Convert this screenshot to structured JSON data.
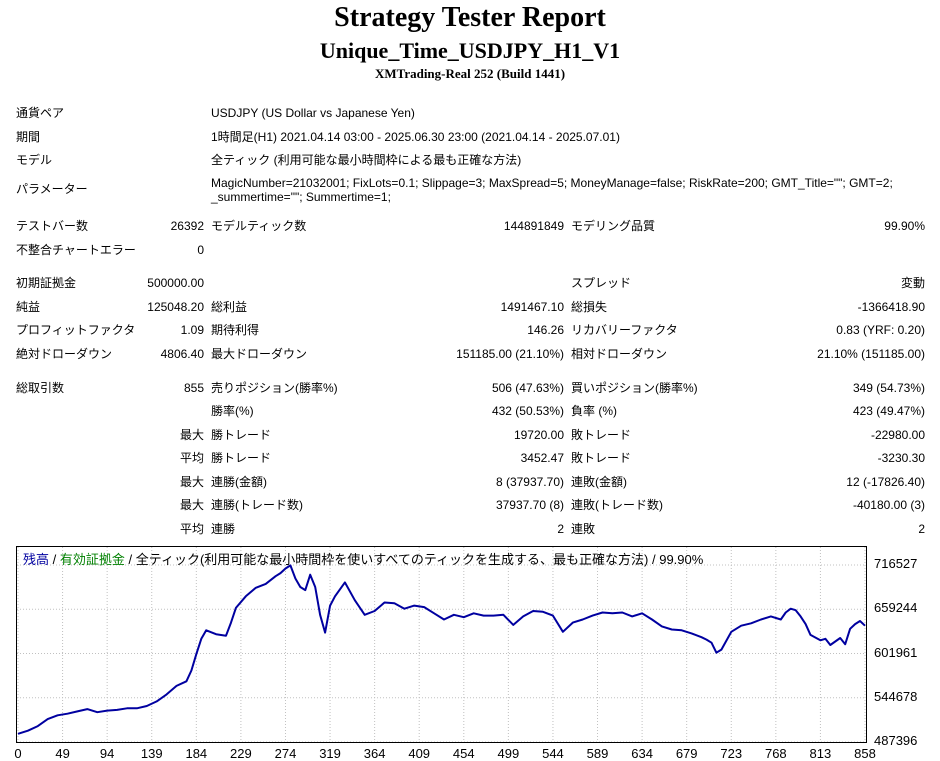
{
  "header": {
    "title": "Strategy Tester Report",
    "ea_name": "Unique_Time_USDJPY_H1_V1",
    "server": "XMTrading-Real 252 (Build 1441)"
  },
  "settings": {
    "symbol_label": "通貨ペア",
    "symbol_value": "USDJPY (US Dollar vs Japanese Yen)",
    "period_label": "期間",
    "period_value": "1時間足(H1) 2021.04.14 03:00 - 2025.06.30 23:00 (2021.04.14 - 2025.07.01)",
    "model_label": "モデル",
    "model_value": "全ティック (利用可能な最小時間枠による最も正確な方法)",
    "params_label": "パラメーター",
    "params_line1": "MagicNumber=21032001; FixLots=0.1; Slippage=3; MaxSpread=5; MoneyManage=false; RiskRate=200; GMT_Title=\"\"; GMT=2;",
    "params_line2": "_summertime=\"\"; Summertime=1;"
  },
  "stats": {
    "bars_label": "テストバー数",
    "bars_value": "26392",
    "ticks_label": "モデルティック数",
    "ticks_value": "144891849",
    "quality_label": "モデリング品質",
    "quality_value": "99.90%",
    "mismatch_label": "不整合チャートエラー",
    "mismatch_value": "0",
    "deposit_label": "初期証拠金",
    "deposit_value": "500000.00",
    "spread_label": "スプレッド",
    "spread_value": "変動",
    "net_label": "純益",
    "net_value": "125048.20",
    "gross_profit_label": "総利益",
    "gross_profit_value": "1491467.10",
    "gross_loss_label": "総損失",
    "gross_loss_value": "-1366418.90",
    "pf_label": "プロフィットファクタ",
    "pf_value": "1.09",
    "expected_label": "期待利得",
    "expected_value": "146.26",
    "recovery_label": "リカバリーファクタ",
    "recovery_value": "0.83 (YRF: 0.20)",
    "abs_dd_label": "絶対ドローダウン",
    "abs_dd_value": "4806.40",
    "max_dd_label": "最大ドローダウン",
    "max_dd_value": "151185.00 (21.10%)",
    "rel_dd_label": "相対ドローダウン",
    "rel_dd_value": "21.10% (151185.00)",
    "total_label": "総取引数",
    "total_value": "855",
    "short_label": "売りポジション(勝率%)",
    "short_value": "506 (47.63%)",
    "long_label": "買いポジション(勝率%)",
    "long_value": "349 (54.73%)",
    "winrate_label": "勝率(%)",
    "winrate_value": "432 (50.53%)",
    "lossrate_label": "負率 (%)",
    "lossrate_value": "423 (49.47%)",
    "max_word": "最大",
    "avg_word": "平均",
    "largest_win_label": "勝トレード",
    "largest_win_value": "19720.00",
    "largest_loss_label": "敗トレード",
    "largest_loss_value": "-22980.00",
    "avg_win_label": "勝トレード",
    "avg_win_value": "3452.47",
    "avg_loss_label": "敗トレード",
    "avg_loss_value": "-3230.30",
    "cons_wins_label": "連勝(金額)",
    "cons_wins_value": "8 (37937.70)",
    "cons_losses_label": "連敗(金額)",
    "cons_losses_value": "12 (-17826.40)",
    "cons_profit_label": "連勝(トレード数)",
    "cons_profit_value": "37937.70 (8)",
    "cons_loss_label": "連敗(トレード数)",
    "cons_loss_value": "-40180.00 (3)",
    "avg_cons_wins_label": "連勝",
    "avg_cons_wins_value": "2",
    "avg_cons_losses_label": "連敗",
    "avg_cons_losses_value": "2"
  },
  "chart_legend": {
    "balance": "残高",
    "sep1": " / ",
    "equity": "有効証拠金",
    "sep2": " / ",
    "model_text": "全ティック(利用可能な最小時間枠を使いすべてのティックを生成する、最も正確な方法) / 99.90%"
  },
  "colors": {
    "balance": "#0000a0",
    "equity": "#008000",
    "grid": "#c0c0c0"
  },
  "chart_data": {
    "type": "line",
    "ylim": [
      487396,
      716527
    ],
    "yticks": [
      "716527",
      "659244",
      "601961",
      "544678",
      "487396"
    ],
    "xlim": [
      0,
      855
    ],
    "xticks": [
      "0",
      "49",
      "94",
      "139",
      "184",
      "229",
      "274",
      "319",
      "364",
      "409",
      "454",
      "499",
      "544",
      "589",
      "634",
      "679",
      "723",
      "768",
      "813",
      "858"
    ],
    "series": [
      {
        "name": "残高",
        "x": [
          0,
          10,
          20,
          30,
          40,
          50,
          60,
          70,
          80,
          90,
          100,
          110,
          120,
          130,
          140,
          150,
          160,
          170,
          175,
          180,
          185,
          190,
          200,
          210,
          215,
          220,
          230,
          240,
          250,
          260,
          265,
          270,
          275,
          280,
          285,
          290,
          295,
          300,
          305,
          310,
          315,
          320,
          330,
          340,
          350,
          360,
          370,
          380,
          390,
          400,
          410,
          420,
          430,
          440,
          450,
          460,
          470,
          480,
          490,
          500,
          510,
          520,
          530,
          540,
          550,
          560,
          570,
          580,
          590,
          600,
          610,
          620,
          630,
          640,
          650,
          660,
          670,
          680,
          690,
          695,
          700,
          705,
          710,
          720,
          730,
          740,
          750,
          760,
          770,
          775,
          780,
          785,
          790,
          795,
          800,
          810,
          815,
          820,
          830,
          835,
          840,
          845,
          850,
          855
        ],
        "y": [
          498000,
          502000,
          508000,
          517000,
          522000,
          524000,
          527000,
          530000,
          526000,
          528000,
          529000,
          531000,
          531000,
          534000,
          540000,
          549000,
          560000,
          566000,
          580000,
          601000,
          621000,
          632000,
          627000,
          625000,
          642000,
          661000,
          676000,
          687000,
          692000,
          702000,
          706000,
          712000,
          716000,
          699000,
          688000,
          684000,
          704000,
          688000,
          652000,
          629000,
          664000,
          676000,
          694000,
          671000,
          652000,
          657000,
          668000,
          667000,
          660000,
          664000,
          662000,
          654000,
          646000,
          652000,
          649000,
          654000,
          651000,
          651000,
          652000,
          639000,
          650000,
          657000,
          656000,
          651000,
          630000,
          642000,
          646000,
          651000,
          655000,
          654000,
          655000,
          650000,
          654000,
          646000,
          637000,
          633000,
          632000,
          628000,
          623000,
          620000,
          616000,
          603000,
          607000,
          630000,
          638000,
          641000,
          646000,
          650000,
          646000,
          655000,
          660000,
          658000,
          650000,
          640000,
          626000,
          619000,
          621000,
          613000,
          622000,
          614000,
          634000,
          640000,
          644000,
          638000
        ]
      }
    ]
  }
}
